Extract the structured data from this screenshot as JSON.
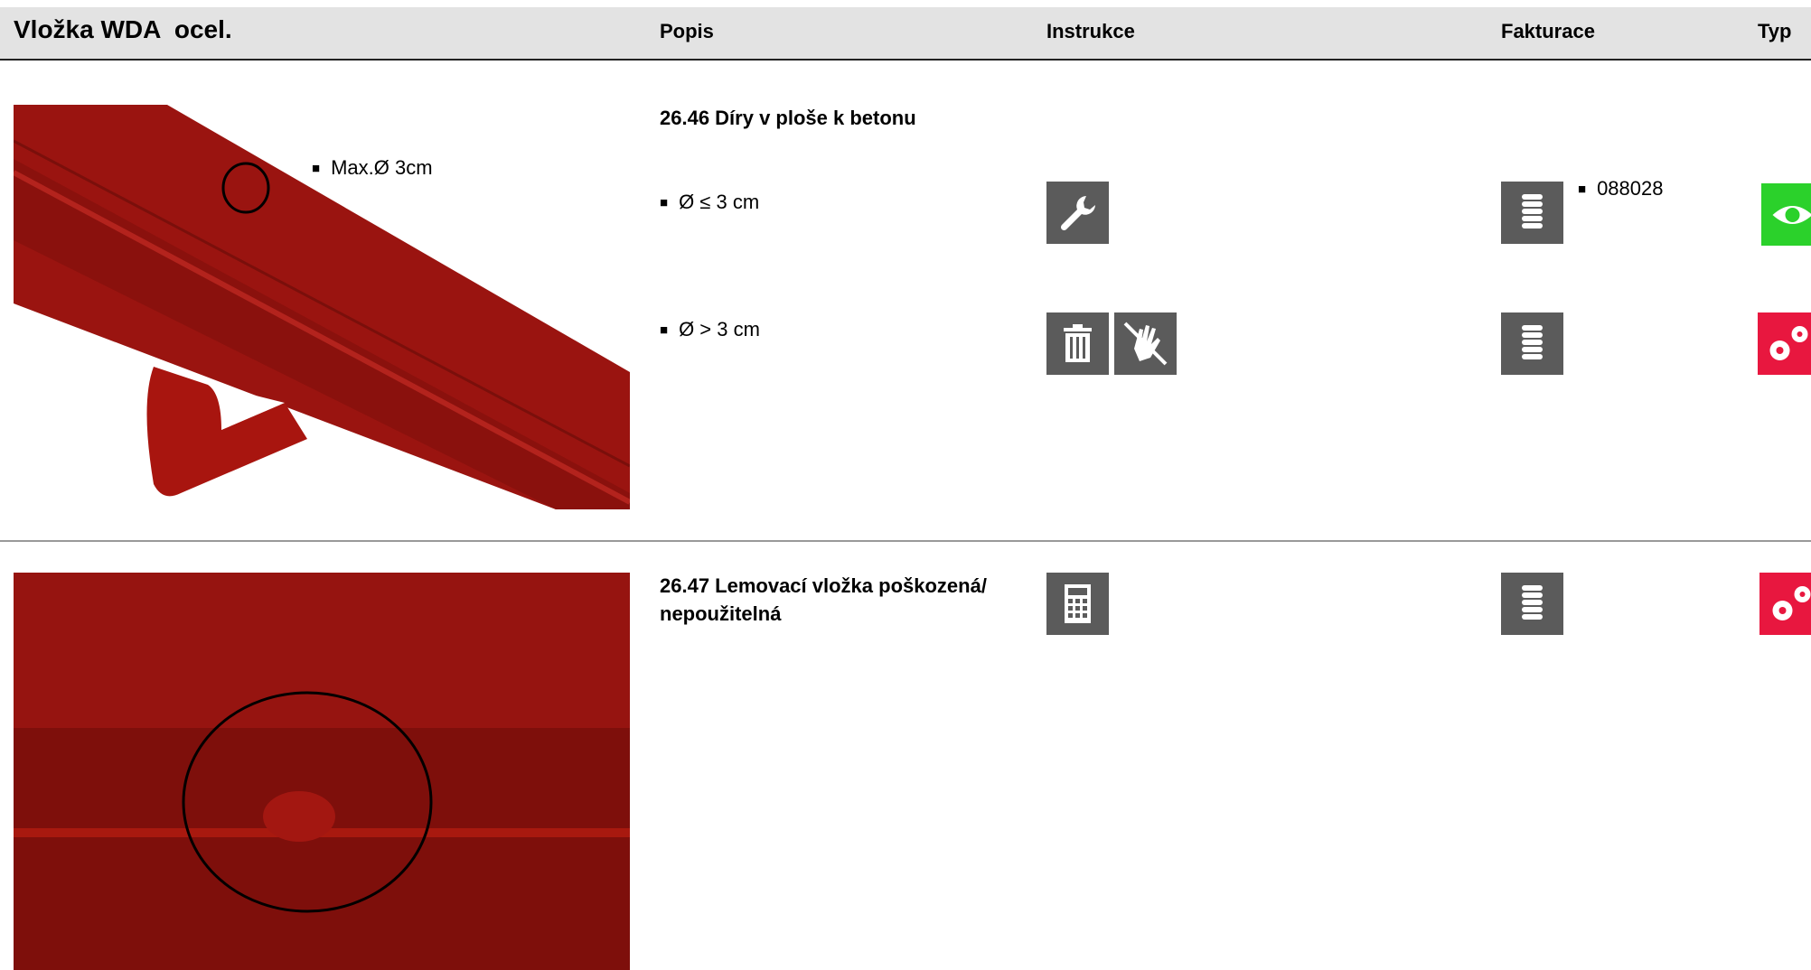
{
  "header": {
    "title": "Vložka WDA  ocel.",
    "columns": [
      "Popis",
      "Instrukce",
      "Fakturace",
      "Typ"
    ]
  },
  "sections": [
    {
      "image_label": "Max.Ø 3cm",
      "title": "26.46 Díry v ploše k betonu",
      "items": [
        {
          "text": "Ø ≤ 3 cm",
          "code": "088028"
        },
        {
          "text": "Ø > 3 cm"
        }
      ]
    },
    {
      "title": "26.47 Lemovací vložka poškozená/ nepoužitelná"
    }
  ]
}
